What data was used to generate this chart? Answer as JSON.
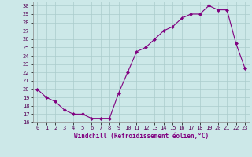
{
  "x": [
    0,
    1,
    2,
    3,
    4,
    5,
    6,
    7,
    8,
    9,
    10,
    11,
    12,
    13,
    14,
    15,
    16,
    17,
    18,
    19,
    20,
    21,
    22,
    23
  ],
  "y": [
    20,
    19,
    18.5,
    17.5,
    17,
    17,
    16.5,
    16.5,
    16.5,
    19.5,
    22,
    24.5,
    25,
    26,
    27,
    27.5,
    28.5,
    29,
    29,
    30,
    29.5,
    29.5,
    25.5,
    22.5
  ],
  "line_color": "#800080",
  "marker": "D",
  "marker_size": 2.0,
  "bg_color": "#cce8e8",
  "grid_color": "#aacccc",
  "xlabel": "Windchill (Refroidissement éolien,°C)",
  "xlabel_color": "#800080",
  "ytick_labels": [
    "16",
    "17",
    "18",
    "19",
    "20",
    "21",
    "22",
    "23",
    "24",
    "25",
    "26",
    "27",
    "28",
    "29",
    "30"
  ],
  "ytick_values": [
    16,
    17,
    18,
    19,
    20,
    21,
    22,
    23,
    24,
    25,
    26,
    27,
    28,
    29,
    30
  ],
  "xtick_labels": [
    "0",
    "1",
    "2",
    "3",
    "4",
    "5",
    "6",
    "7",
    "8",
    "9",
    "10",
    "11",
    "12",
    "13",
    "14",
    "15",
    "16",
    "17",
    "18",
    "19",
    "20",
    "21",
    "22",
    "23"
  ],
  "xlim": [
    -0.5,
    23.5
  ],
  "ylim": [
    16,
    30.5
  ]
}
